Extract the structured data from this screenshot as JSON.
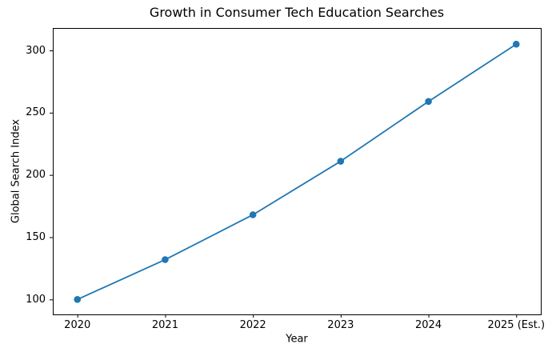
{
  "chart_data": {
    "type": "line",
    "title": "Growth in Consumer Tech Education Searches",
    "xlabel": "Year",
    "ylabel": "Global Search Index",
    "categories": [
      "2020",
      "2021",
      "2022",
      "2023",
      "2024",
      "2025 (Est.)"
    ],
    "series": [
      {
        "name": "Global Search Index",
        "values": [
          100,
          132,
          168,
          211,
          259,
          305
        ]
      }
    ],
    "yticks": [
      100,
      150,
      200,
      250,
      300
    ],
    "ylim": [
      88,
      318
    ],
    "xlim": [
      -0.28,
      5.28
    ],
    "grid": false,
    "legend_position": "none",
    "line_color": "#1f77b4",
    "marker": "circle",
    "background_color": "#ffffff",
    "axis_color": "#000000"
  }
}
